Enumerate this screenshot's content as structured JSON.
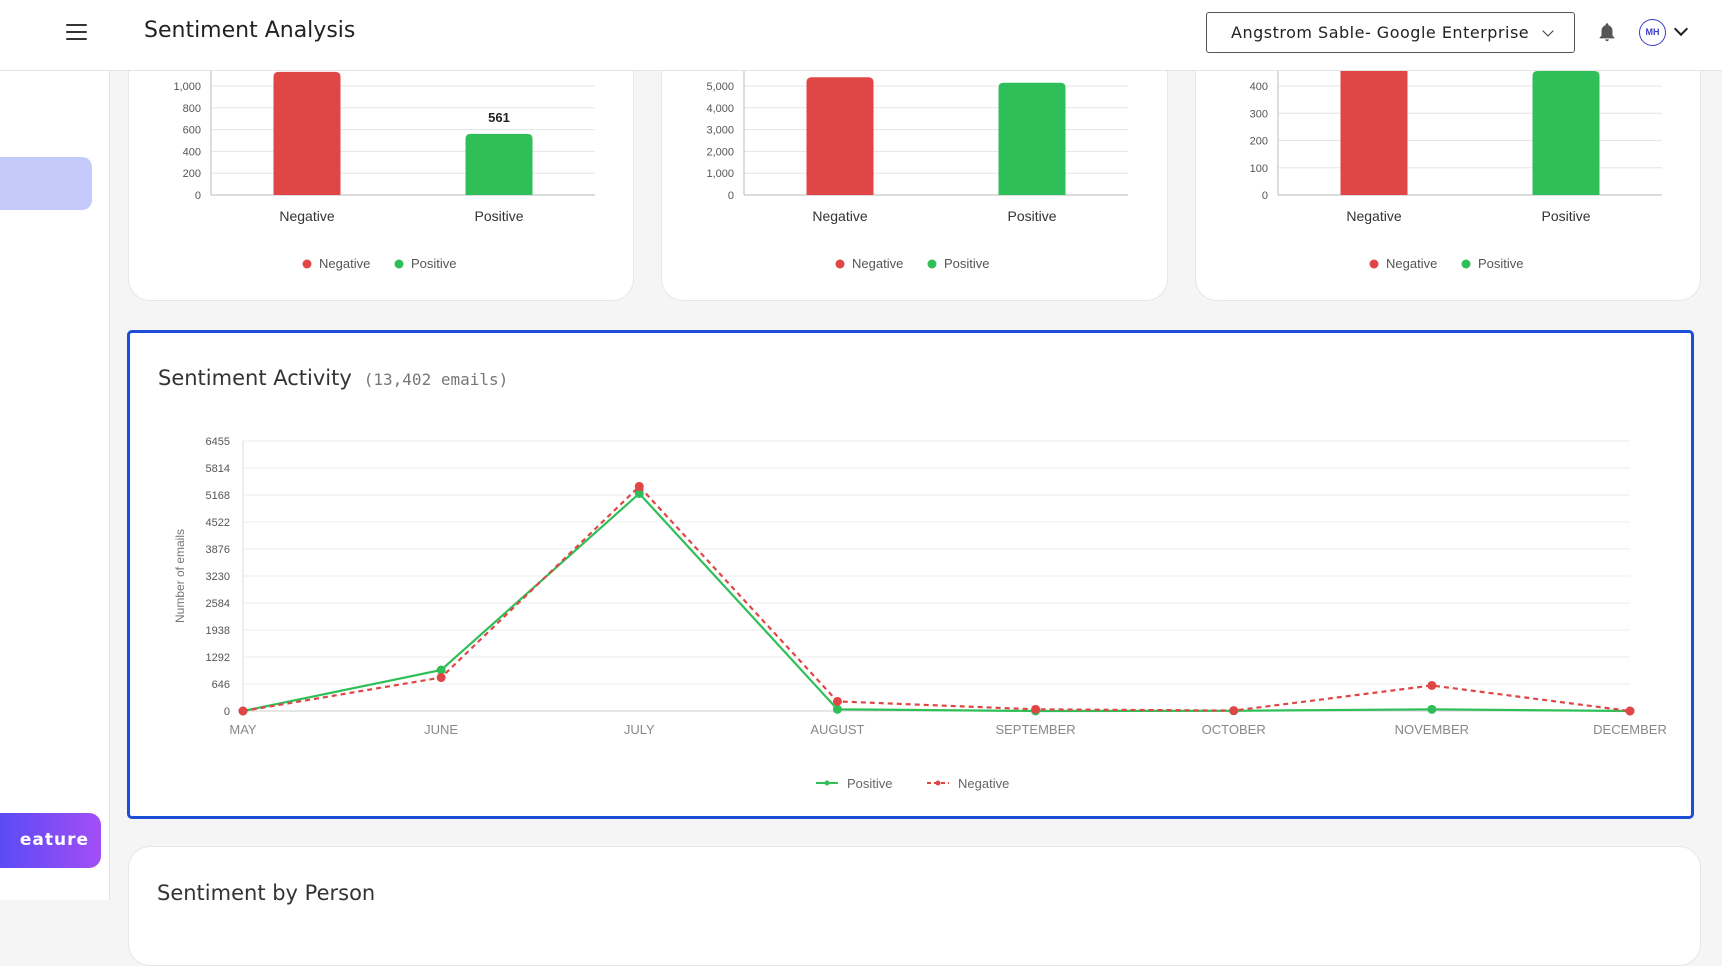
{
  "header": {
    "title": "Sentiment Analysis",
    "org_selector": "Angstrom Sable- Google Enterprise",
    "avatar_initials": "MH"
  },
  "sidebar": {
    "feature_button": "eature"
  },
  "colors": {
    "negative": "#e04646",
    "positive": "#2ebf58",
    "accent": "#1d4ed8"
  },
  "summary_cards": [
    {
      "yticks": [
        "0",
        "200",
        "400",
        "600",
        "800",
        "1,000"
      ],
      "ymax": 1000,
      "bars": [
        {
          "label": "Negative",
          "value": 1130,
          "color": "#e04646"
        },
        {
          "label": "Positive",
          "value": 561,
          "color": "#2ebf58",
          "data_label": "561"
        }
      ],
      "legend": [
        "Negative",
        "Positive"
      ]
    },
    {
      "yticks": [
        "0",
        "1,000",
        "2,000",
        "3,000",
        "4,000",
        "5,000"
      ],
      "ymax": 5000,
      "bars": [
        {
          "label": "Negative",
          "value": 5400,
          "color": "#e04646"
        },
        {
          "label": "Positive",
          "value": 5150,
          "color": "#2ebf58"
        }
      ],
      "legend": [
        "Negative",
        "Positive"
      ]
    },
    {
      "yticks": [
        "0",
        "100",
        "200",
        "300",
        "400"
      ],
      "ymax": 400,
      "bars": [
        {
          "label": "Negative",
          "value": 480,
          "color": "#e04646"
        },
        {
          "label": "Positive",
          "value": 455,
          "color": "#2ebf58"
        }
      ],
      "legend": [
        "Negative",
        "Positive"
      ]
    }
  ],
  "activity": {
    "title": "Sentiment Activity",
    "count": "(13,402 emails)"
  },
  "chart_data": {
    "type": "line",
    "title": "Sentiment Activity",
    "ylabel": "Number of emails",
    "xlabel": "",
    "categories": [
      "MAY",
      "JUNE",
      "JULY",
      "AUGUST",
      "SEPTEMBER",
      "OCTOBER",
      "NOVEMBER",
      "DECEMBER"
    ],
    "yticks": [
      "0",
      "646",
      "1292",
      "1938",
      "2584",
      "3230",
      "3876",
      "4522",
      "5168",
      "5814",
      "6455"
    ],
    "ylim": [
      0,
      6455
    ],
    "series": [
      {
        "name": "Positive",
        "values": [
          0,
          980,
          5200,
          40,
          0,
          5,
          40,
          0
        ],
        "color": "#2ebf58",
        "dash": false
      },
      {
        "name": "Negative",
        "values": [
          0,
          800,
          5370,
          230,
          40,
          10,
          610,
          0
        ],
        "color": "#e04646",
        "dash": true
      }
    ],
    "legend_position": "bottom"
  },
  "person": {
    "title": "Sentiment by Person"
  }
}
